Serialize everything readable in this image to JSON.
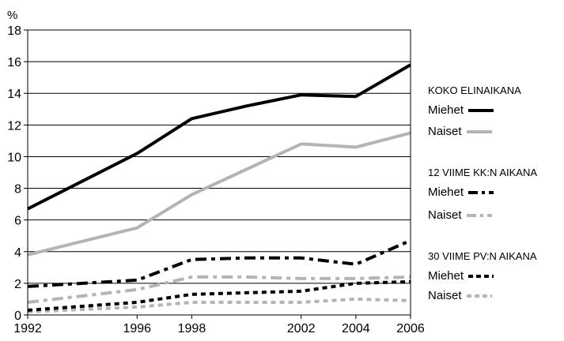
{
  "chart_data": {
    "type": "line",
    "ylabel": "%",
    "xlabel": "",
    "ylim": [
      0,
      18
    ],
    "yticks": [
      0,
      2,
      4,
      6,
      8,
      10,
      12,
      14,
      16,
      18
    ],
    "xlim": [
      1992,
      2006
    ],
    "xticks": [
      1992,
      1996,
      1998,
      2002,
      2004,
      2006
    ],
    "grid": "horizontal",
    "legend_position": "right",
    "legend_groups": [
      {
        "heading": "KOKO ELINAIKANA",
        "series": [
          {
            "name": "Miehet",
            "color": "#000000",
            "style": "solid",
            "x": [
              1992,
              1996,
              1998,
              2000,
              2002,
              2004,
              2006
            ],
            "y": [
              6.7,
              10.2,
              12.4,
              13.2,
              13.9,
              13.8,
              15.8
            ]
          },
          {
            "name": "Naiset",
            "color": "#b4b4b4",
            "style": "solid",
            "x": [
              1992,
              1996,
              1998,
              2000,
              2002,
              2004,
              2006
            ],
            "y": [
              3.8,
              5.5,
              7.6,
              9.2,
              10.8,
              10.6,
              11.5
            ]
          }
        ]
      },
      {
        "heading": "12 VIIME KK:N AIKANA",
        "series": [
          {
            "name": "Miehet",
            "color": "#000000",
            "style": "dashdot",
            "x": [
              1992,
              1996,
              1998,
              2000,
              2002,
              2004,
              2006
            ],
            "y": [
              1.8,
              2.2,
              3.5,
              3.6,
              3.6,
              3.2,
              4.7
            ]
          },
          {
            "name": "Naiset",
            "color": "#b4b4b4",
            "style": "dashdot",
            "x": [
              1992,
              1996,
              1998,
              2000,
              2002,
              2004,
              2006
            ],
            "y": [
              0.8,
              1.6,
              2.4,
              2.4,
              2.3,
              2.3,
              2.4
            ]
          }
        ]
      },
      {
        "heading": "30 VIIME PV:N AIKANA",
        "series": [
          {
            "name": "Miehet",
            "color": "#000000",
            "style": "dotted",
            "x": [
              1992,
              1996,
              1998,
              2000,
              2002,
              2004,
              2006
            ],
            "y": [
              0.3,
              0.8,
              1.3,
              1.4,
              1.5,
              2.0,
              2.1
            ]
          },
          {
            "name": "Naiset",
            "color": "#b4b4b4",
            "style": "dotted",
            "x": [
              1992,
              1996,
              1998,
              2000,
              2002,
              2004,
              2006
            ],
            "y": [
              0.2,
              0.5,
              0.8,
              0.8,
              0.8,
              1.0,
              0.9
            ]
          }
        ]
      }
    ]
  }
}
